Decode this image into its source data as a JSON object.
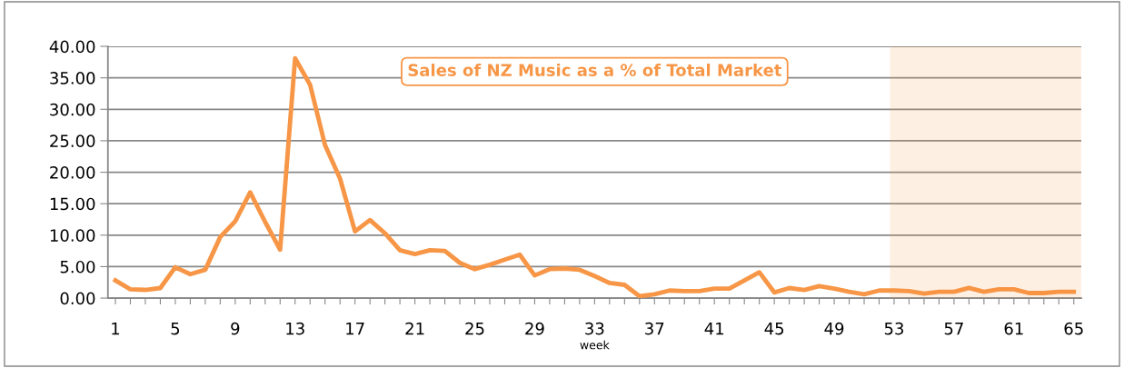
{
  "chart_data": {
    "type": "line",
    "title": "Sales of NZ Music as a % of Total Market",
    "xlabel": "week",
    "categories": [
      "1",
      null,
      null,
      null,
      "5",
      null,
      null,
      null,
      "9",
      null,
      null,
      null,
      "13",
      null,
      null,
      null,
      "17",
      null,
      null,
      null,
      "21",
      null,
      null,
      null,
      "25",
      null,
      null,
      null,
      "29",
      null,
      null,
      null,
      "33",
      null,
      null,
      null,
      "37",
      null,
      null,
      null,
      "41",
      null,
      null,
      null,
      "45",
      null,
      null,
      null,
      "49",
      null,
      null,
      null,
      "53",
      null,
      null,
      null,
      "57",
      null,
      null,
      null,
      "61",
      null,
      null,
      null,
      "65"
    ],
    "series": [
      {
        "color": "#f79646",
        "values": [
          2.8,
          1.4,
          1.3,
          1.6,
          4.9,
          3.8,
          4.5,
          9.7,
          12.2,
          16.8,
          12.1,
          7.7,
          38.1,
          33.9,
          24.3,
          19.0,
          10.6,
          12.4,
          10.3,
          7.6,
          7.0,
          7.6,
          7.5,
          5.6,
          4.6,
          5.3,
          6.1,
          6.9,
          3.6,
          4.6,
          4.7,
          4.5,
          3.5,
          2.4,
          2.1,
          0.3,
          0.6,
          1.2,
          1.1,
          1.1,
          1.5,
          1.5,
          2.8,
          4.1,
          0.9,
          1.6,
          1.3,
          1.9,
          1.5,
          1.0,
          0.6,
          1.2,
          1.2,
          1.1,
          0.7,
          1.0,
          1.0,
          1.6,
          1.0,
          1.4,
          1.4,
          0.8,
          0.8,
          1.0,
          1.0
        ]
      }
    ],
    "ylim": [
      0,
      40
    ],
    "yticks": [
      {
        "value": 0,
        "label": "0.00"
      },
      {
        "value": 5,
        "label": "5.00"
      },
      {
        "value": 10,
        "label": "10.00"
      },
      {
        "value": 15,
        "label": "15.00"
      },
      {
        "value": 20,
        "label": "20.00"
      },
      {
        "value": 25,
        "label": "25.00"
      },
      {
        "value": 30,
        "label": "30.00"
      },
      {
        "value": 35,
        "label": "35.00"
      },
      {
        "value": 40,
        "label": "40.00"
      }
    ],
    "grid": "y",
    "line_style": "solid",
    "marker": "none",
    "bands": [
      {
        "axis": "x",
        "from": "53",
        "to": "65",
        "color": "#f79646"
      }
    ]
  }
}
